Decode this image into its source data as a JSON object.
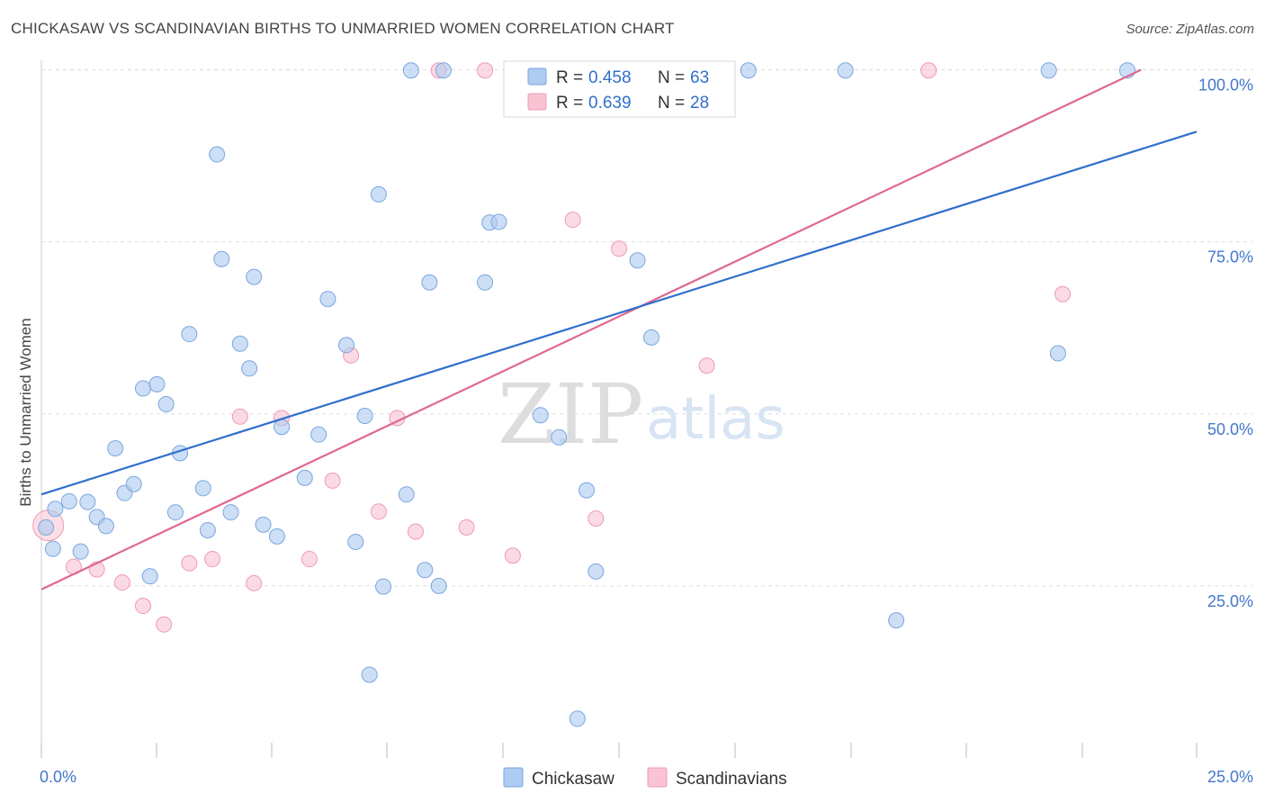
{
  "title": "CHICKASAW VS SCANDINAVIAN BIRTHS TO UNMARRIED WOMEN CORRELATION CHART",
  "source": "Source: ZipAtlas.com",
  "watermark": {
    "zip": "ZIP",
    "atlas": "atlas"
  },
  "legend_box": {
    "r_label": "R =",
    "n_label": "N =",
    "rows": [
      {
        "r": "0.458",
        "n": "63"
      },
      {
        "r": "0.639",
        "n": "28"
      }
    ]
  },
  "colors": {
    "chickasaw_fill": "#aecbf0",
    "chickasaw_stroke": "#7aa6de",
    "chickasaw_line": "#2f6fcc",
    "scandinavian_fill": "#f9c3d3",
    "scandinavian_stroke": "#ee9ab4",
    "scandinavian_line": "#e06890",
    "tick_label": "#4477cc",
    "grid": "#dddddd"
  },
  "chart_data": {
    "type": "scatter",
    "title": "CHICKASAW VS SCANDINAVIAN BIRTHS TO UNMARRIED WOMEN CORRELATION CHART",
    "xlabel": "",
    "ylabel": "Births to Unmarried Women",
    "xlim": [
      0,
      25
    ],
    "ylim": [
      0,
      102
    ],
    "x_tick_labels": [
      "0.0%",
      "25.0%"
    ],
    "y_ticks": [
      25,
      50,
      75,
      100
    ],
    "y_tick_labels": [
      "25.0%",
      "50.0%",
      "75.0%",
      "100.0%"
    ],
    "grid": true,
    "legend_position": "bottom-center",
    "series": [
      {
        "name": "Chickasaw",
        "r": 0.458,
        "n": 63,
        "trend": {
          "x": [
            0,
            25
          ],
          "y": [
            38.3,
            91.0
          ]
        },
        "points": [
          [
            0.1,
            33.5
          ],
          [
            0.3,
            36.2
          ],
          [
            0.6,
            37.3
          ],
          [
            0.25,
            30.4
          ],
          [
            0.85,
            30.0
          ],
          [
            1.0,
            37.2
          ],
          [
            1.2,
            35.0
          ],
          [
            1.4,
            33.7
          ],
          [
            1.6,
            45.0
          ],
          [
            1.8,
            38.5
          ],
          [
            2.0,
            39.8
          ],
          [
            2.2,
            53.7
          ],
          [
            2.35,
            26.4
          ],
          [
            2.5,
            54.3
          ],
          [
            2.7,
            51.4
          ],
          [
            2.9,
            35.7
          ],
          [
            3.0,
            44.3
          ],
          [
            3.2,
            61.6
          ],
          [
            3.5,
            39.2
          ],
          [
            3.6,
            33.1
          ],
          [
            3.8,
            87.7
          ],
          [
            3.9,
            72.5
          ],
          [
            4.1,
            35.7
          ],
          [
            4.3,
            60.2
          ],
          [
            4.5,
            56.6
          ],
          [
            4.6,
            69.9
          ],
          [
            4.8,
            33.9
          ],
          [
            5.1,
            32.2
          ],
          [
            5.2,
            48.1
          ],
          [
            5.7,
            40.7
          ],
          [
            6.0,
            47.0
          ],
          [
            6.2,
            66.7
          ],
          [
            6.6,
            60.0
          ],
          [
            6.8,
            31.4
          ],
          [
            7.0,
            49.7
          ],
          [
            7.1,
            12.1
          ],
          [
            7.3,
            81.9
          ],
          [
            7.4,
            24.9
          ],
          [
            7.9,
            38.3
          ],
          [
            8.0,
            99.9
          ],
          [
            8.3,
            27.3
          ],
          [
            8.4,
            69.1
          ],
          [
            8.6,
            25.0
          ],
          [
            8.7,
            99.9
          ],
          [
            9.6,
            69.1
          ],
          [
            9.7,
            77.8
          ],
          [
            9.9,
            77.9
          ],
          [
            10.8,
            49.8
          ],
          [
            11.2,
            46.6
          ],
          [
            11.5,
            99.9
          ],
          [
            11.6,
            5.7
          ],
          [
            11.8,
            38.9
          ],
          [
            12.0,
            27.1
          ],
          [
            12.9,
            72.3
          ],
          [
            13.2,
            61.1
          ],
          [
            13.6,
            99.9
          ],
          [
            15.3,
            99.9
          ],
          [
            17.4,
            99.9
          ],
          [
            18.5,
            20.0
          ],
          [
            21.8,
            99.9
          ],
          [
            22.0,
            58.8
          ],
          [
            23.5,
            99.9
          ],
          [
            13.5,
            99.8
          ]
        ]
      },
      {
        "name": "Scandinavians",
        "r": 0.639,
        "n": 28,
        "trend": {
          "x": [
            0,
            23.8
          ],
          "y": [
            24.5,
            100.0
          ]
        },
        "points": [
          [
            0.15,
            33.8
          ],
          [
            0.7,
            27.8
          ],
          [
            1.2,
            27.4
          ],
          [
            1.75,
            25.5
          ],
          [
            2.2,
            22.1
          ],
          [
            2.65,
            19.4
          ],
          [
            3.2,
            28.3
          ],
          [
            3.7,
            28.9
          ],
          [
            4.3,
            49.6
          ],
          [
            4.6,
            25.4
          ],
          [
            5.2,
            49.4
          ],
          [
            5.8,
            28.9
          ],
          [
            6.3,
            40.3
          ],
          [
            6.7,
            58.5
          ],
          [
            7.3,
            35.8
          ],
          [
            7.7,
            49.4
          ],
          [
            8.1,
            32.9
          ],
          [
            8.6,
            99.9
          ],
          [
            9.2,
            33.5
          ],
          [
            9.6,
            99.9
          ],
          [
            10.2,
            29.4
          ],
          [
            11.5,
            78.2
          ],
          [
            12.0,
            34.8
          ],
          [
            12.5,
            74.0
          ],
          [
            14.4,
            57.0
          ],
          [
            19.2,
            99.9
          ],
          [
            22.1,
            67.4
          ],
          [
            13.0,
            99.8
          ]
        ]
      }
    ]
  }
}
